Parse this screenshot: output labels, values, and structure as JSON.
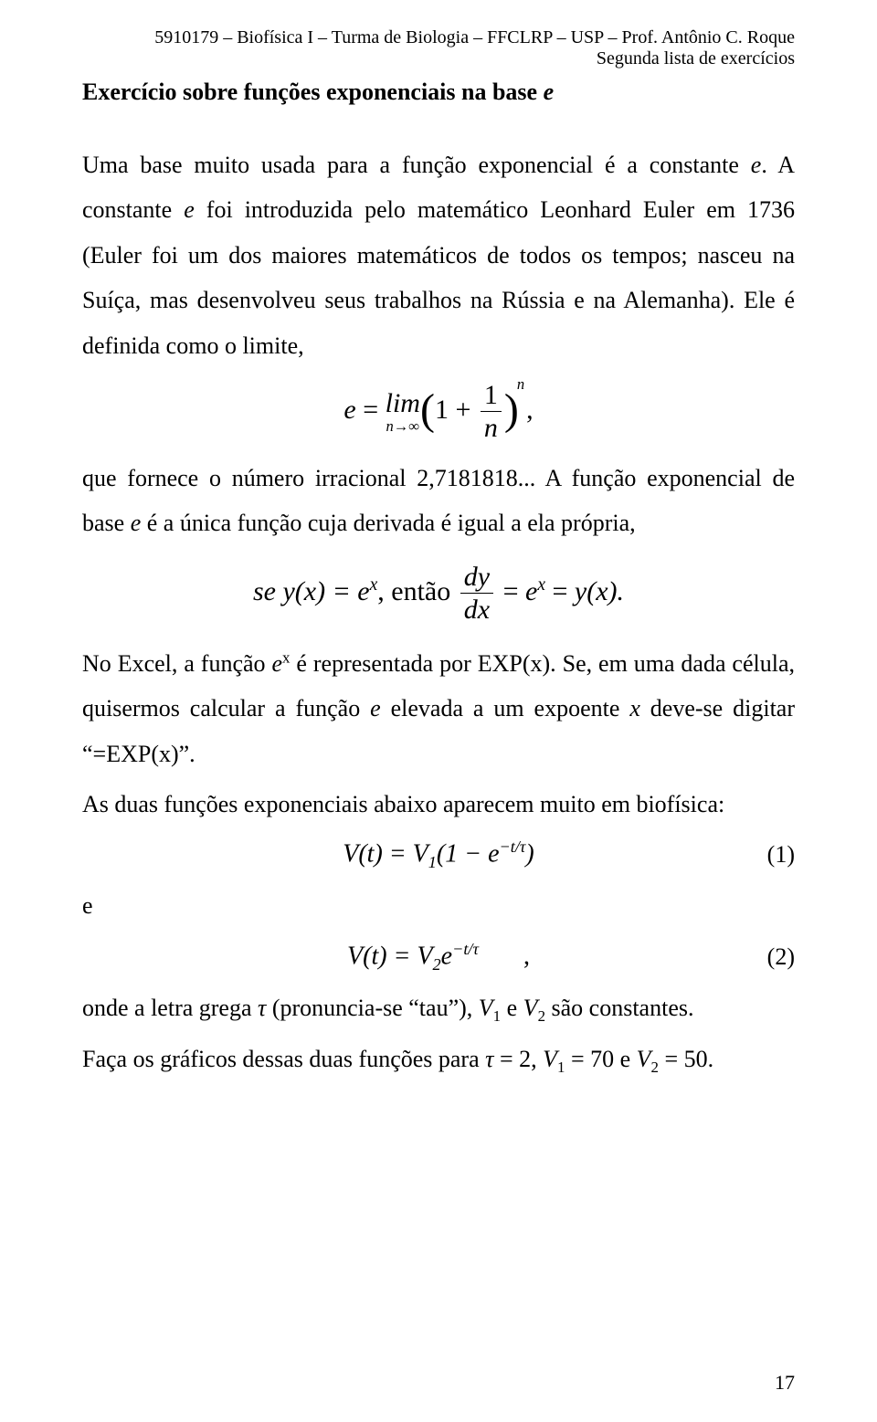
{
  "header": {
    "line1": "5910179 – Biofísica I – Turma de Biologia – FFCLRP – USP – Prof. Antônio C. Roque",
    "line2": "Segunda lista de exercícios"
  },
  "section_title_pre": "Exercício sobre funções exponenciais na base ",
  "section_title_var": "e",
  "para1a": "Uma base muito usada para a função exponencial é a constante ",
  "para1_e": "e",
  "para1b": ". A constante ",
  "para1_e2": "e",
  "para1c": " foi introduzida pelo matemático Leonhard Euler em 1736 (Euler foi um dos maiores matemáticos de todos os tempos; nasceu na Suíça, mas desenvolveu seus trabalhos na Rússia e na Alemanha). Ele é definida como o limite,",
  "eq1": {
    "e": "e",
    "eq": " = ",
    "lim_top": "lim",
    "lim_bot": "n→∞",
    "lparen": "(",
    "one": "1",
    "plus": " + ",
    "frac_num": "1",
    "frac_den": "n",
    "rparen": ")",
    "sup_n": "n",
    "comma": ","
  },
  "para2a": "que fornece o número irracional 2,7181818... A função exponencial de base ",
  "para2_e": "e",
  "para2b": " é a única função cuja derivada é igual a ela própria,",
  "eq2": {
    "se": "se  ",
    "yx": "y(x) = e",
    "sup_x1": "x",
    "entao": ",  então  ",
    "frac_num": "dy",
    "frac_den": "dx",
    "eq": " = ",
    "e2": "e",
    "sup_x2": "x",
    "eq2": " = ",
    "yx2": "y(x)."
  },
  "para3a": "No Excel, a função ",
  "para3_e": "e",
  "para3_sup": "x",
  "para3b": " é representada por EXP(x). Se, em uma dada célula, quisermos calcular a função ",
  "para3_e2": "e",
  "para3c": " elevada a um expoente ",
  "para3_x": "x",
  "para3d": " deve-se digitar “=EXP(x)”.",
  "para4": "As duas funções exponenciais abaixo aparecem muito em biofísica:",
  "eq3": {
    "lhs": "V(t) = V",
    "sub1": "1",
    "lpar": "(1 − e",
    "sup": "−t/τ",
    "rpar": ")",
    "num": "(1)"
  },
  "e_line": "e",
  "eq4": {
    "lhs": "V(t) = V",
    "sub2": "2",
    "e": "e",
    "sup": "−t/τ",
    "tail": "       ,",
    "num": "(2)"
  },
  "para5a": "onde a letra grega ",
  "para5_tau": "τ",
  "para5b": " (pronuncia-se “tau”), ",
  "para5_v1": "V",
  "para5_s1": "1",
  "para5c": " e ",
  "para5_v2": "V",
  "para5_s2": "2",
  "para5d": " são constantes.",
  "para6a": "Faça os gráficos dessas duas funções para ",
  "para6_tau": "τ",
  "para6b": " = 2, ",
  "para6_v1": "V",
  "para6_s1": "1",
  "para6c": " = 70 e ",
  "para6_v2": "V",
  "para6_s2": "2",
  "para6d": " = 50.",
  "page_number": "17"
}
